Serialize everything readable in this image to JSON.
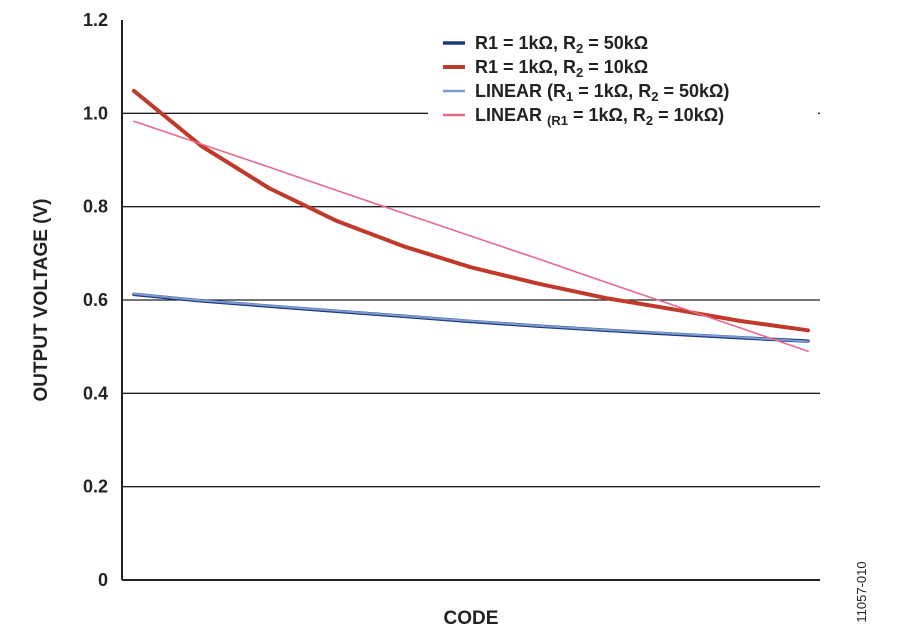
{
  "chart_data": {
    "type": "line",
    "xlabel": "CODE",
    "ylabel": "OUTPUT VOLTAGE (V)",
    "ylim": [
      0,
      1.2
    ],
    "yticks": [
      "0",
      "0.2",
      "0.4",
      "0.6",
      "0.8",
      "1.0",
      "1.2"
    ],
    "grid": true,
    "legend_position": "top-right",
    "x": [
      0,
      10,
      20,
      30,
      40,
      50,
      60,
      70,
      80,
      90,
      100
    ],
    "series": [
      {
        "name": "R1 = 1kΩ, R2 = 50kΩ",
        "legend_parts": [
          "R1 = 1kΩ, R",
          "2",
          " = 50kΩ"
        ],
        "color": "#1f3a7a",
        "width": 3.5,
        "values": [
          0.612,
          0.598,
          0.587,
          0.576,
          0.565,
          0.554,
          0.544,
          0.535,
          0.527,
          0.519,
          0.512
        ]
      },
      {
        "name": "R1 = 1kΩ, R2 = 10kΩ",
        "legend_parts": [
          "R1 = 1kΩ, R",
          "2",
          " = 10kΩ"
        ],
        "color": "#c0392b",
        "width": 4,
        "values": [
          1.048,
          0.93,
          0.84,
          0.77,
          0.715,
          0.67,
          0.635,
          0.604,
          0.58,
          0.555,
          0.535
        ]
      },
      {
        "name": "LINEAR (R1 = 1kΩ, R2 = 50kΩ)",
        "legend_parts": [
          "LINEAR (R",
          "1",
          " = 1kΩ, R",
          "2",
          " = 50kΩ)"
        ],
        "color": "#7b9bd1",
        "width": 2,
        "values": [
          0.613,
          0.599,
          0.588,
          0.577,
          0.566,
          0.555,
          0.545,
          0.536,
          0.528,
          0.52,
          0.511
        ]
      },
      {
        "name": "LINEAR (R1 = 1kΩ, R2 = 10kΩ)",
        "legend_parts": [
          "LINEAR ",
          "(R1",
          " = 1kΩ, R",
          "2",
          " = 10kΩ)"
        ],
        "color": "#e86a8a",
        "width": 1.6,
        "values": [
          0.983,
          0.934,
          0.885,
          0.835,
          0.786,
          0.737,
          0.688,
          0.638,
          0.589,
          0.54,
          0.49
        ]
      }
    ]
  },
  "figure_id": "11057-010"
}
